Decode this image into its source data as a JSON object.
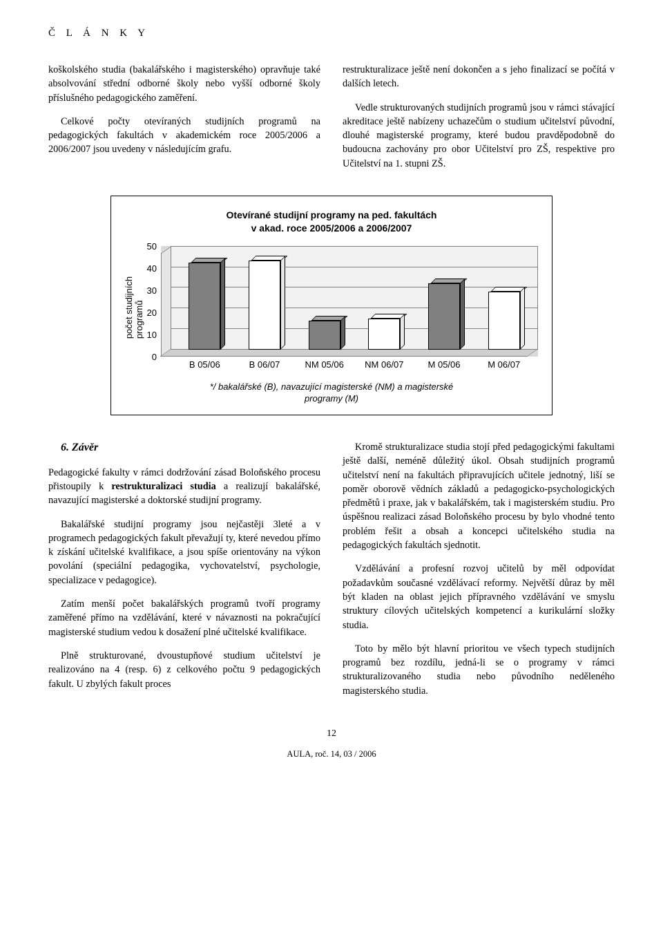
{
  "header": "Č L Á N K Y",
  "para_left_1": "koškolského studia (bakalářského i magisterského) opravňuje také absolvování střední odborné školy nebo vyšší odborné školy příslušného pedagogického zaměření.",
  "para_left_2": "Celkové počty otevíraných studijních programů na pedagogických fakultách v akademickém roce 2005/2006 a 2006/2007 jsou uvedeny v následujícím grafu.",
  "para_right_1": "restrukturalizace ještě není dokončen a s jeho finalizací se počítá v dalších letech.",
  "para_right_2": "Vedle strukturovaných studijních programů jsou v rámci stávající akreditace ještě nabízeny uchazečům o studium učitelství původní, dlouhé magisterské programy, které budou pravděpodobně do budoucna zachovány pro obor Učitelství pro ZŠ, respektive pro Učitelství na 1. stupni ZŠ.",
  "chart": {
    "title_l1": "Otevírané studijní programy na ped. fakultách",
    "title_l2": "v akad. roce 2005/2006 a 2006/2007",
    "ylabel_l1": "počet studijních",
    "ylabel_l2": "programů",
    "ymax": 50,
    "ytick_step": 10,
    "yticks": [
      "50",
      "40",
      "30",
      "20",
      "10",
      "0"
    ],
    "categories": [
      "B 05/06",
      "B 06/07",
      "NM 05/06",
      "NM 06/07",
      "M 05/06",
      "M 06/07"
    ],
    "values": [
      42,
      43,
      14,
      15,
      32,
      28
    ],
    "colors": [
      "#808080",
      "#ffffff",
      "#808080",
      "#ffffff",
      "#808080",
      "#ffffff"
    ],
    "top_colors": [
      "#a6a6a6",
      "#ffffff",
      "#a6a6a6",
      "#ffffff",
      "#a6a6a6",
      "#ffffff"
    ],
    "side_colors": [
      "#606060",
      "#e8e8e8",
      "#606060",
      "#e8e8e8",
      "#606060",
      "#e8e8e8"
    ],
    "note_l1": "*/ bakalářské (B), navazující magisterské (NM) a  magisterské",
    "note_l2": "programy (M)"
  },
  "section6_title": "6. Závěr",
  "s6_left_1a": "Pedagogické fakulty v rámci dodržování zásad Boloňského procesu přistoupily k ",
  "s6_left_1_bold": "restrukturalizaci studia",
  "s6_left_1b": " a realizují bakalářské, navazující magisterské a doktorské studijní programy.",
  "s6_left_2": "Bakalářské studijní programy jsou nejčastěji 3leté a v programech pedagogických fakult převažují ty, které nevedou přímo k získání učitelské kvalifikace, a jsou spíše orientovány na výkon povolání (speciální pedagogika, vychovatelství, psychologie, specializace v pedagogice).",
  "s6_left_3": "Zatím menší počet bakalářských programů tvoří programy zaměřené přímo na vzdělávání, které v návaznosti na pokračující magisterské studium vedou k dosažení plné učitelské kvalifikace.",
  "s6_left_4": "Plně strukturované, dvoustupňové studium učitelství je realizováno na 4 (resp. 6) z celkového počtu 9 pedagogických fakult. U zbylých fakult proces",
  "s6_right_1": "Kromě strukturalizace studia stojí před pedagogickými fakultami ještě další, neméně důležitý úkol. Obsah studijních programů učitelství není na fakultách připravujících učitele jednotný, liší se poměr oborově vědních základů a pedagogicko-psychologických předmětů i praxe, jak v bakalářském, tak i magisterském studiu. Pro úspěšnou realizaci zásad Boloňského procesu by bylo vhodné tento problém řešit a obsah a koncepci učitelského studia na pedagogických fakultách sjednotit.",
  "s6_right_2": "Vzdělávání a profesní rozvoj učitelů by měl odpovídat požadavkům současné vzdělávací reformy. Největší důraz by měl být kladen na oblast jejich přípravného vzdělávání ve smyslu struktury cílových učitelských kompetencí a kurikulární složky studia.",
  "s6_right_3": "Toto by mělo být hlavní prioritou ve všech typech studijních programů bez rozdílu, jedná-li se o programy v rámci strukturalizovaného studia nebo původního neděleného magisterského studia.",
  "page_number": "12",
  "footer": "AULA, roč. 14, 03 / 2006"
}
